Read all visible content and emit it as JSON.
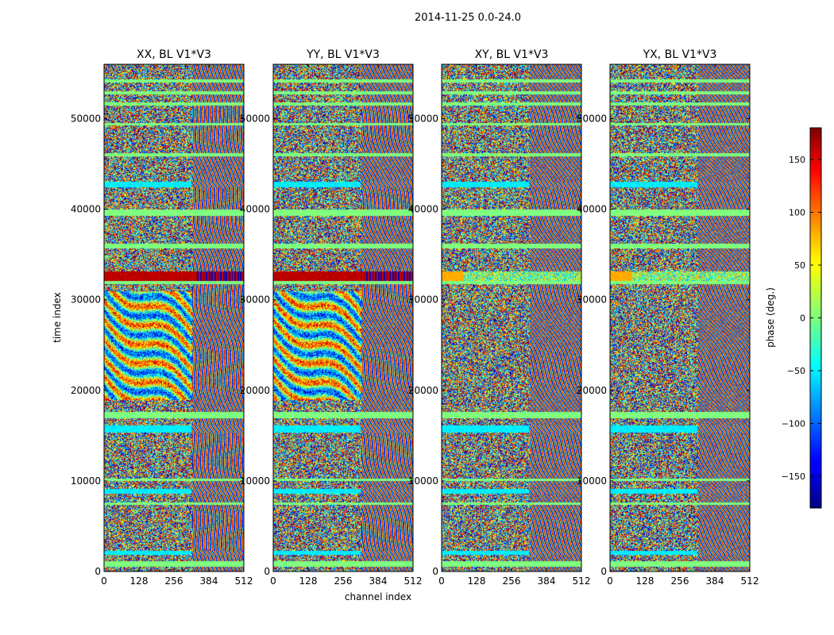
{
  "chart_data": {
    "type": "heatmap",
    "suptitle": "2014-11-25 0.0-24.0",
    "ylabel": "time index",
    "xlabel": "channel index",
    "xlim": [
      0,
      512
    ],
    "ylim": [
      0,
      56000
    ],
    "xticks": [
      0,
      128,
      256,
      384,
      512
    ],
    "yticks": [
      0,
      10000,
      20000,
      30000,
      40000,
      50000
    ],
    "panels": [
      {
        "title": "XX, BL V1*V3"
      },
      {
        "title": "YY, BL V1*V3"
      },
      {
        "title": "XY, BL V1*V3"
      },
      {
        "title": "YX, BL V1*V3"
      }
    ],
    "colorbar": {
      "label": "phase (deg.)",
      "range": [
        -180,
        180
      ],
      "ticks": [
        -150,
        -100,
        -50,
        0,
        50,
        100,
        150
      ],
      "colormap": "jet"
    }
  }
}
